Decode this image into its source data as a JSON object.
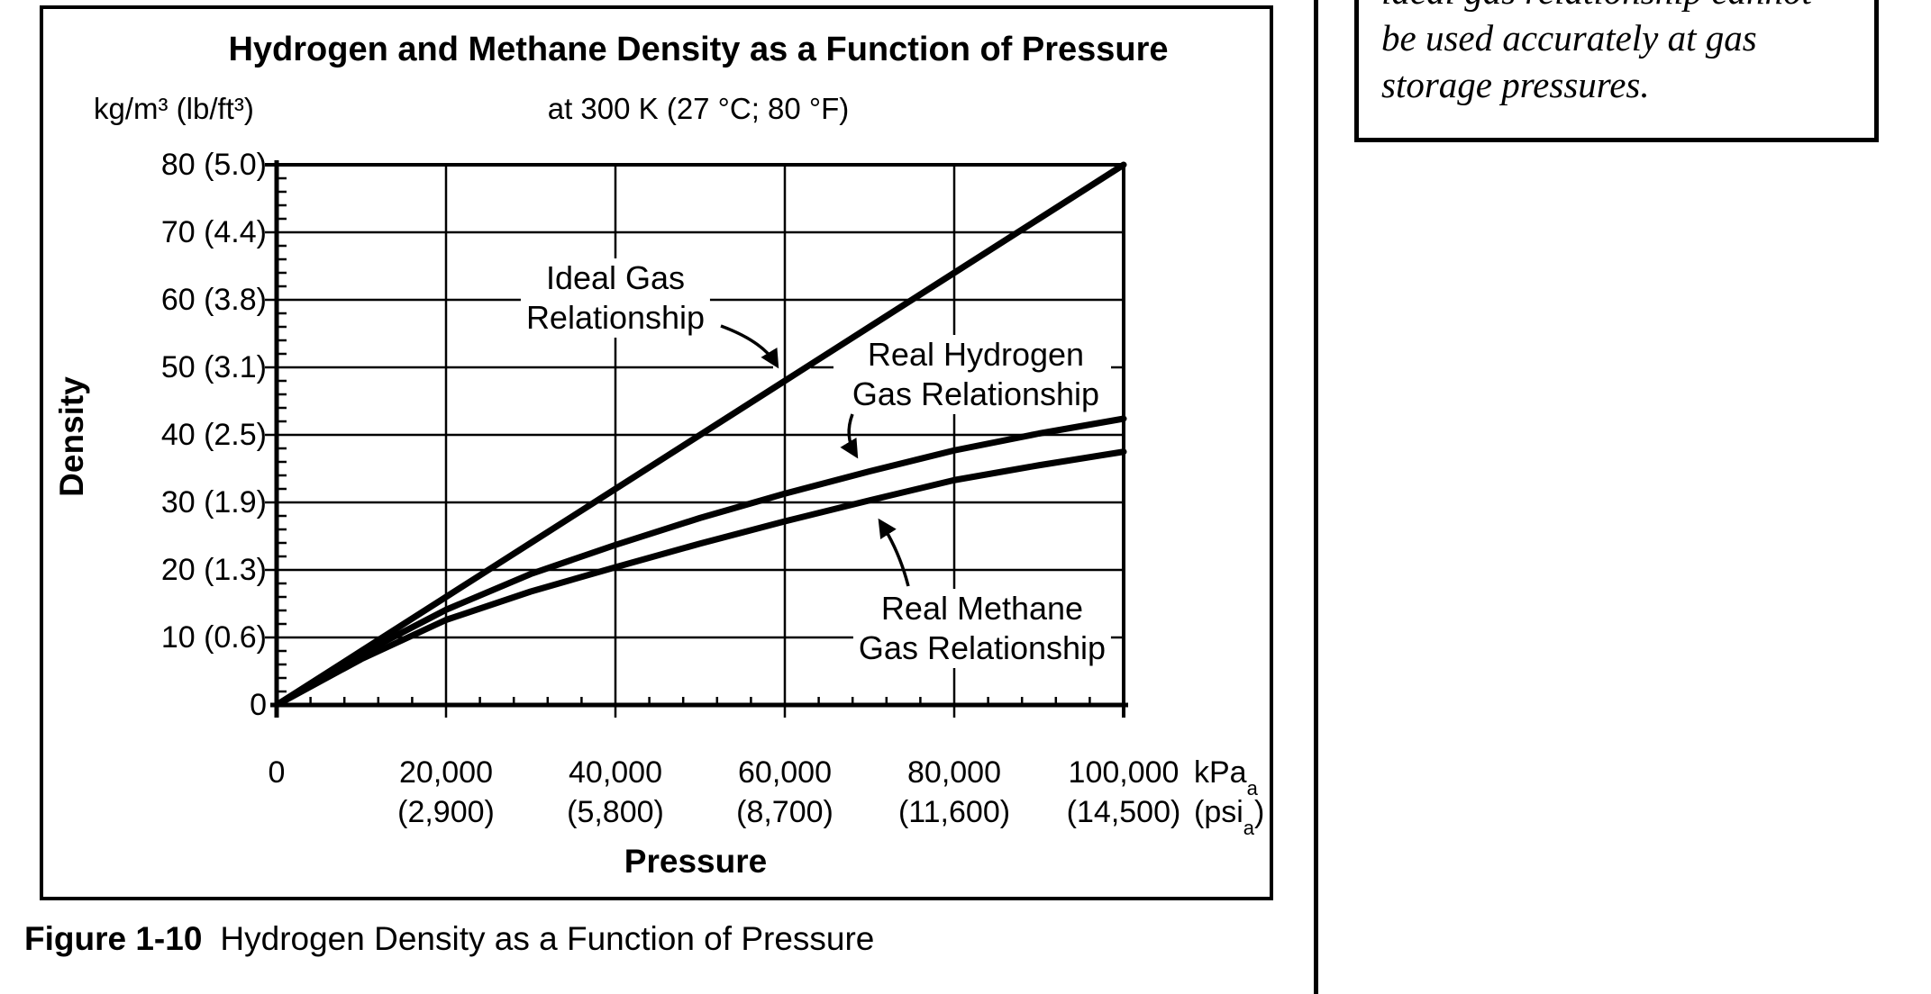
{
  "figure": {
    "title": "Hydrogen and Methane Density as a Function of Pressure",
    "subtitle": "at 300 K (27 °C; 80 °F)",
    "y_unit_label": "kg/m³ (lb/ft³)",
    "y_axis_title": "Density",
    "x_axis_title": "Pressure",
    "x_unit_kpa": {
      "main": "kPa",
      "sub": "a"
    },
    "x_unit_psi": {
      "pre": "(psi",
      "sub": "a",
      "post": ")"
    }
  },
  "caption": {
    "label": "Figure 1-10",
    "text": "Hydrogen Density as a Function of Pressure"
  },
  "sidebar": {
    "lines": [
      "ideal gas relationship cannot",
      "be used accurately at gas",
      "storage pressures."
    ]
  },
  "chart_data": {
    "type": "line",
    "title": "Hydrogen and Methane Density as a Function of Pressure",
    "subtitle": "at 300 K (27 °C; 80 °F)",
    "xlabel": "Pressure",
    "ylabel": "Density",
    "x_units": "kPa(a), psi(a) in parentheses",
    "y_units": "kg/m³, lb/ft³ in parentheses",
    "xlim": [
      0,
      100000
    ],
    "ylim": [
      0,
      80
    ],
    "grid": true,
    "line_color": "#000000",
    "x": [
      0,
      10000,
      20000,
      30000,
      40000,
      50000,
      60000,
      70000,
      80000,
      90000,
      100000
    ],
    "series": [
      {
        "name": "Ideal Gas Relationship",
        "values": [
          0,
          8,
          16,
          24,
          32,
          40,
          48,
          56,
          64,
          72,
          80
        ]
      },
      {
        "name": "Real Hydrogen Gas Relationship",
        "values": [
          0,
          7.6,
          14.1,
          19.4,
          23.7,
          27.7,
          31.3,
          34.6,
          37.7,
          40.2,
          42.4
        ]
      },
      {
        "name": "Real Methane Gas Relationship",
        "values": [
          0,
          6.8,
          12.6,
          16.8,
          20.4,
          23.9,
          27.2,
          30.3,
          33.3,
          35.5,
          37.5
        ]
      }
    ],
    "y_ticks": [
      {
        "v": 80,
        "label": "80 (5.0)"
      },
      {
        "v": 70,
        "label": "70 (4.4)"
      },
      {
        "v": 60,
        "label": "60 (3.8)"
      },
      {
        "v": 50,
        "label": "50 (3.1)"
      },
      {
        "v": 40,
        "label": "40 (2.5)"
      },
      {
        "v": 30,
        "label": "30 (1.9)"
      },
      {
        "v": 20,
        "label": "20 (1.3)"
      },
      {
        "v": 10,
        "label": "10 (0.6)"
      },
      {
        "v": 0,
        "label": "0"
      }
    ],
    "x_ticks": [
      {
        "v": 0,
        "kpa": "0",
        "psi": ""
      },
      {
        "v": 20000,
        "kpa": "20,000",
        "psi": "(2,900)"
      },
      {
        "v": 40000,
        "kpa": "40,000",
        "psi": "(5,800)"
      },
      {
        "v": 60000,
        "kpa": "60,000",
        "psi": "(8,700)"
      },
      {
        "v": 80000,
        "kpa": "80,000",
        "psi": "(11,600)"
      },
      {
        "v": 100000,
        "kpa": "100,000",
        "psi": "(14,500)"
      }
    ],
    "annotations": [
      {
        "name": "ideal-gas-label",
        "lines": [
          "Ideal Gas",
          "Relationship"
        ]
      },
      {
        "name": "real-hydrogen-label",
        "lines": [
          "Real Hydrogen",
          "Gas Relationship"
        ]
      },
      {
        "name": "real-methane-label",
        "lines": [
          "Real Methane",
          "Gas Relationship"
        ]
      }
    ],
    "legend_position": "inline-annotations"
  }
}
